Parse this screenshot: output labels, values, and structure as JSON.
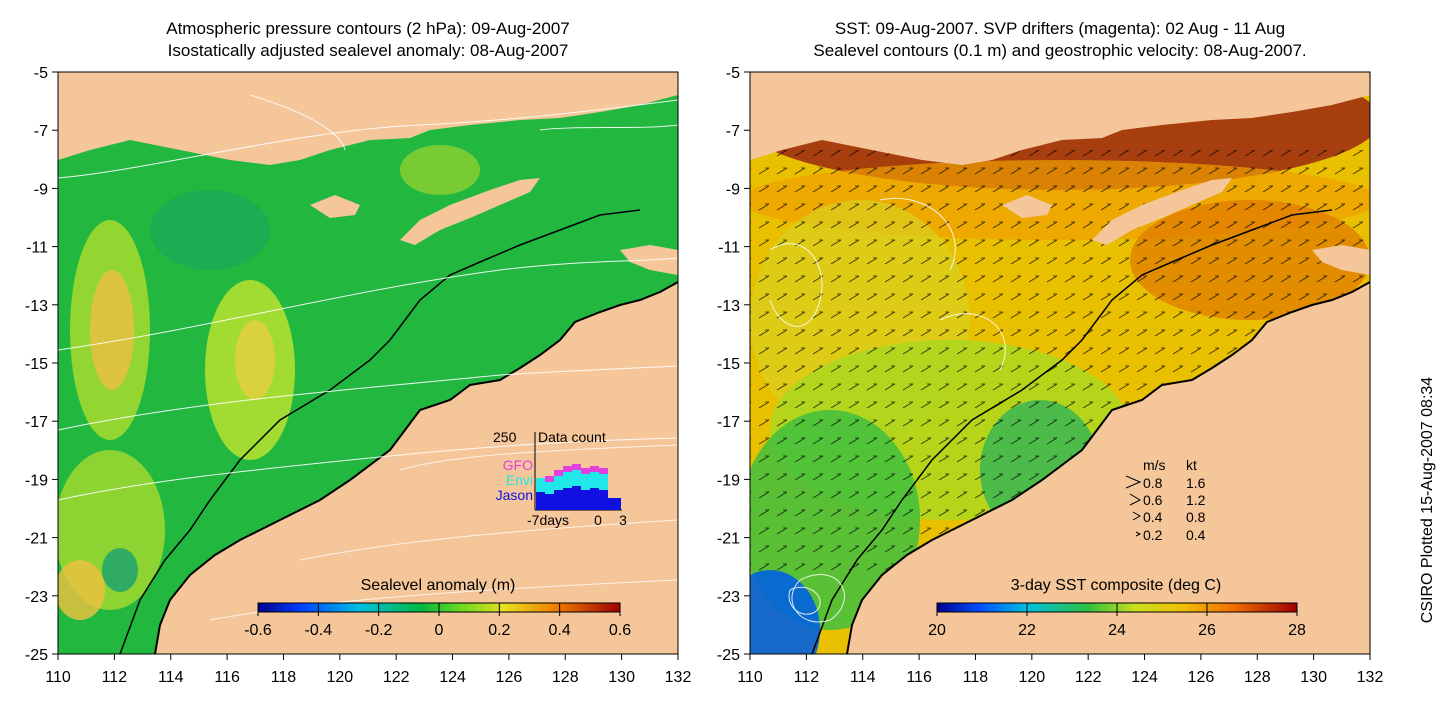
{
  "left_panel": {
    "title_line1": "Atmospheric pressure contours (2 hPa): 09-Aug-2007",
    "title_line2": "Isostatically adjusted sealevel anomaly: 08-Aug-2007",
    "y_ticks": [
      "-5",
      "-7",
      "-9",
      "-11",
      "-13",
      "-15",
      "-17",
      "-19",
      "-21",
      "-23",
      "-25"
    ],
    "x_ticks": [
      "110",
      "112",
      "114",
      "116",
      "118",
      "120",
      "122",
      "124",
      "126",
      "128",
      "130",
      "132"
    ],
    "colorbar_label": "Sealevel anomaly (m)",
    "colorbar_ticks": [
      "-0.6",
      "-0.4",
      "-0.2",
      "0",
      "0.2",
      "0.4",
      "0.6"
    ],
    "inset": {
      "max_label": "250",
      "title": "Data count",
      "legend": [
        {
          "name": "GFO",
          "color": "#e040e0"
        },
        {
          "name": "Envi",
          "color": "#20e8e8"
        },
        {
          "name": "Jason",
          "color": "#1010e0"
        }
      ],
      "x_ticks": [
        "-7days",
        "0",
        "3"
      ]
    }
  },
  "right_panel": {
    "title_line1": "SST: 09-Aug-2007. SVP drifters (magenta): 02 Aug - 11 Aug",
    "title_line2": "Sealevel contours (0.1 m) and geostrophic velocity: 08-Aug-2007.",
    "y_ticks": [
      "-5",
      "-7",
      "-9",
      "-11",
      "-13",
      "-15",
      "-17",
      "-19",
      "-21",
      "-23",
      "-25"
    ],
    "x_ticks": [
      "110",
      "112",
      "114",
      "116",
      "118",
      "120",
      "122",
      "124",
      "126",
      "128",
      "130",
      "132"
    ],
    "colorbar_label": "3-day SST composite (deg C)",
    "colorbar_ticks": [
      "20",
      "22",
      "24",
      "26",
      "28"
    ],
    "velocity_legend": {
      "header_ms": "m/s",
      "header_kt": "kt",
      "rows": [
        {
          "ms": "0.8",
          "kt": "1.6"
        },
        {
          "ms": "0.6",
          "kt": "1.2"
        },
        {
          "ms": "0.4",
          "kt": "0.8"
        },
        {
          "ms": "0.2",
          "kt": "0.4"
        }
      ]
    }
  },
  "credit": "CSIRO Plotted 15-Aug-2007 08:34",
  "colors": {
    "land": "#f5c69a",
    "sla_background": "#22b840",
    "sst_background": "#f0b000"
  }
}
